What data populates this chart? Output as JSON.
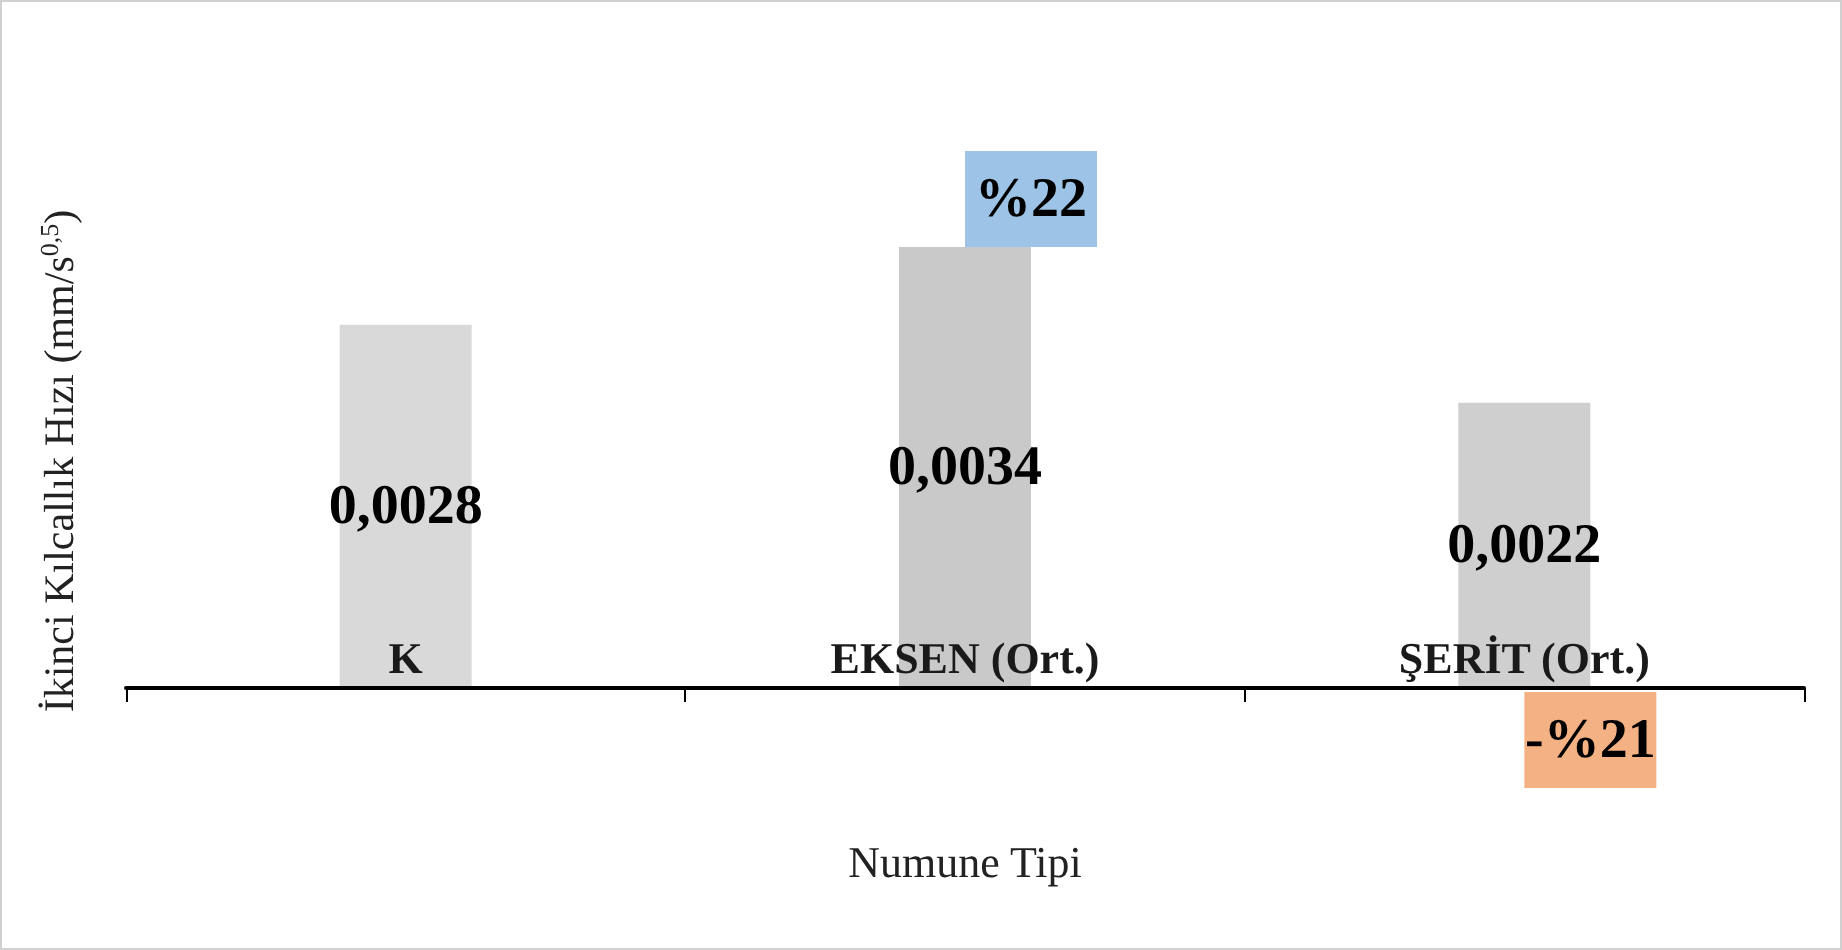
{
  "chart_data": {
    "type": "bar",
    "xlabel": "Numune Tipi",
    "ylabel": "İkinci Kılcallık Hızı (mm/s$^{0,5}$)",
    "categories": [
      "K",
      "EKSEN (Ort.)",
      "ŞERİT (Ort.)"
    ],
    "values": [
      0.0028,
      0.0034,
      0.0022
    ],
    "colors": [
      "#d9d9d9",
      "#c9c9c9",
      "#cfcfcf"
    ],
    "value_labels": [
      "0,0028",
      "0,0034",
      "0,0022"
    ],
    "grid": false,
    "annotations": [
      {
        "text": "%22",
        "x": "EKSEN (Ort.)",
        "y": 0.0034
      },
      {
        "text": "-%21",
        "x": "ŞERİT (Ort.)",
        "y": 0
      }
    ]
  }
}
